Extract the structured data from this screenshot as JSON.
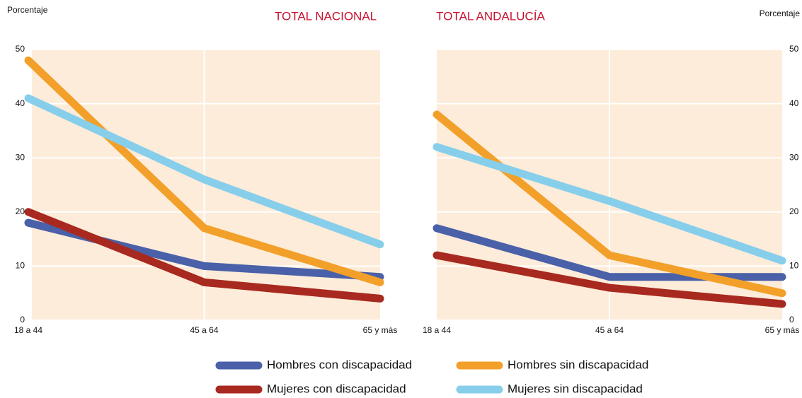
{
  "chart_data": [
    {
      "type": "line",
      "title": "TOTAL NACIONAL",
      "ylabel": "Porcentaje",
      "yaxis_position": "left",
      "categories": [
        "18 a 44",
        "45 a 64",
        "65 y más"
      ],
      "ylim": [
        0,
        50
      ],
      "yticks": [
        0,
        10,
        20,
        30,
        40,
        50
      ],
      "grid": true,
      "series": [
        {
          "name": "Hombres con discapacidad",
          "color": "#4a60a8",
          "values": [
            18,
            10,
            8
          ]
        },
        {
          "name": "Mujeres con discapacidad",
          "color": "#a8291f",
          "values": [
            20,
            7,
            4
          ]
        },
        {
          "name": "Hombres sin discapacidad",
          "color": "#f2a02a",
          "values": [
            48,
            17,
            7
          ]
        },
        {
          "name": "Mujeres sin discapacidad",
          "color": "#87ceeb",
          "values": [
            41,
            26,
            14
          ]
        }
      ]
    },
    {
      "type": "line",
      "title": "TOTAL ANDALUCÍA",
      "ylabel": "Porcentaje",
      "yaxis_position": "right",
      "categories": [
        "18 a 44",
        "45 a 64",
        "65 y más"
      ],
      "ylim": [
        0,
        50
      ],
      "yticks": [
        0,
        10,
        20,
        30,
        40,
        50
      ],
      "grid": true,
      "series": [
        {
          "name": "Hombres con discapacidad",
          "color": "#4a60a8",
          "values": [
            17,
            8,
            8
          ]
        },
        {
          "name": "Mujeres con discapacidad",
          "color": "#a8291f",
          "values": [
            12,
            6,
            3
          ]
        },
        {
          "name": "Hombres sin discapacidad",
          "color": "#f2a02a",
          "values": [
            38,
            12,
            5
          ]
        },
        {
          "name": "Mujeres sin discapacidad",
          "color": "#87ceeb",
          "values": [
            32,
            22,
            11
          ]
        }
      ]
    }
  ]
}
